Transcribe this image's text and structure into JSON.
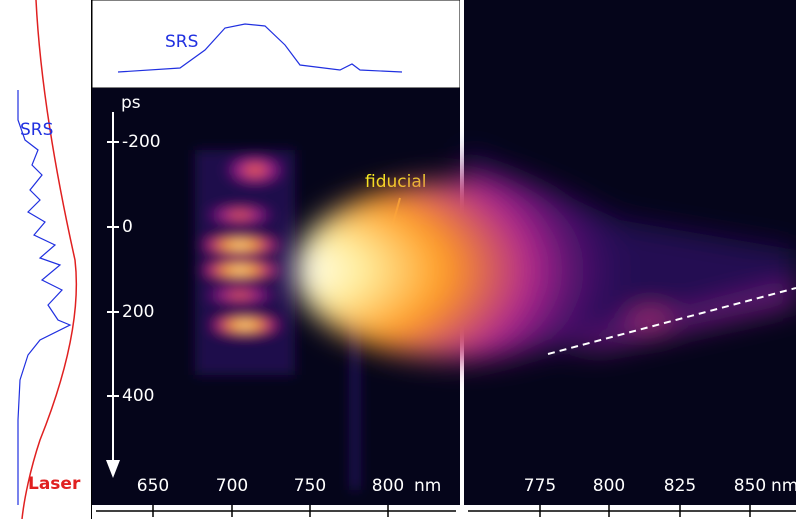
{
  "left_panel": {
    "srs_label": "SRS",
    "laser_label": "Laser"
  },
  "spectrum_panel": {
    "label": "SRS"
  },
  "streak_image": {
    "time_axis": {
      "unit": "ps",
      "ticks": [
        "-200",
        "0",
        "200",
        "400"
      ]
    },
    "wavelength_axis": {
      "ticks": [
        "650",
        "700",
        "750",
        "800"
      ],
      "unit": "nm"
    },
    "annotation": "fiducial"
  },
  "right_image": {
    "wavelength_axis": {
      "ticks": [
        "775",
        "800",
        "825",
        "850"
      ],
      "unit": "nm"
    }
  }
}
